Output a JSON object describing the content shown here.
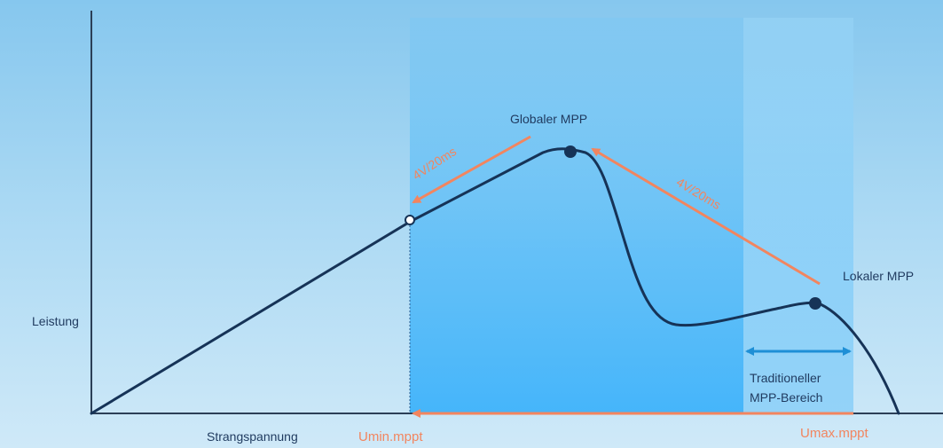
{
  "diagram": {
    "ylabel": "Leistung",
    "xlabel": "Strangspannung",
    "global_mpp_label": "Globaler MPP",
    "local_mpp_label": "Lokaler MPP",
    "traditional_range_label_line1": "Traditioneller",
    "traditional_range_label_line2": "MPP-Bereich",
    "umin_label": "Umin.mppt",
    "umax_label": "Umax.mppt",
    "step_rate_left": "4V/20ms",
    "step_rate_right": "4V/20ms",
    "colors": {
      "curve": "#163357",
      "axis": "#2b3f57",
      "orange_arrow": "#f2855f",
      "blue_arrow": "#1e8fd6",
      "mppt_region": "#4db8f7",
      "traditional_region": "#8fd0f7"
    }
  }
}
